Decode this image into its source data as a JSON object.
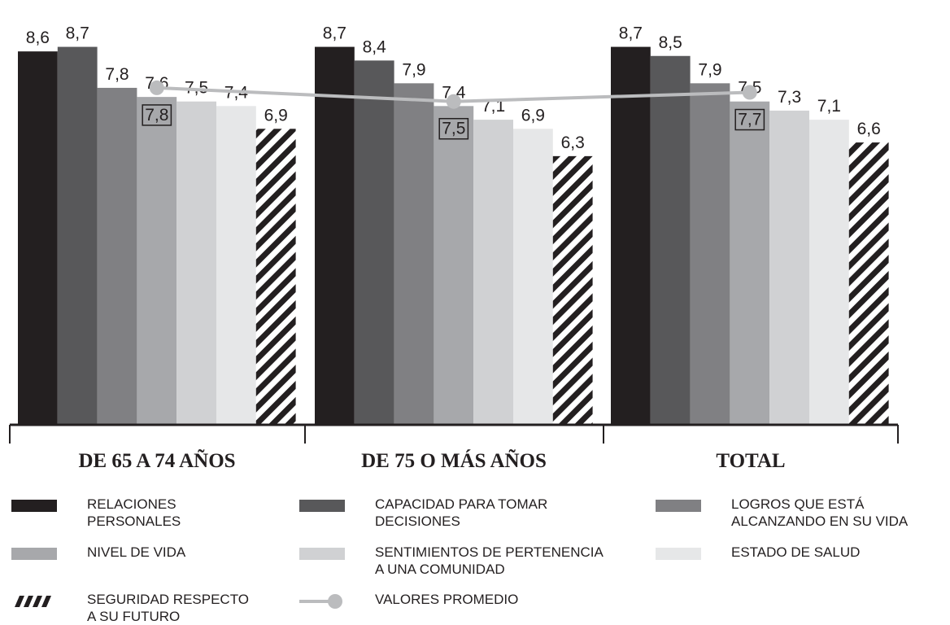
{
  "chart_data": {
    "type": "bar",
    "categories": [
      "DE 65 A 74 AÑOS",
      "DE 75 O MÁS AÑOS",
      "TOTAL"
    ],
    "series": [
      {
        "name": "RELACIONES\nPERSONALES",
        "color": "#231f20",
        "values": [
          8.6,
          8.7,
          8.7
        ],
        "value_labels": [
          "8,6",
          "8,7",
          "8,7"
        ]
      },
      {
        "name": "CAPACIDAD PARA TOMAR\nDECISIONES",
        "color": "#58585a",
        "values": [
          8.7,
          8.4,
          8.5
        ],
        "value_labels": [
          "8,7",
          "8,4",
          "8,5"
        ]
      },
      {
        "name": "LOGROS QUE ESTÁ\nALCANZANDO EN SU VIDA",
        "color": "#808083",
        "values": [
          7.8,
          7.9,
          7.9
        ],
        "value_labels": [
          "7,8",
          "7,9",
          "7,9"
        ]
      },
      {
        "name": "NIVEL DE VIDA",
        "color": "#a7a8ab",
        "values": [
          7.6,
          7.4,
          7.5
        ],
        "value_labels": [
          "7,6",
          "7,4",
          "7,5"
        ]
      },
      {
        "name": "SENTIMIENTOS DE PERTENENCIA\nA UNA COMUNIDAD",
        "color": "#d0d1d3",
        "values": [
          7.5,
          7.1,
          7.3
        ],
        "value_labels": [
          "7,5",
          "7,1",
          "7,3"
        ]
      },
      {
        "name": "ESTADO DE SALUD",
        "color": "#e6e7e8",
        "values": [
          7.4,
          6.9,
          7.1
        ],
        "value_labels": [
          "7,4",
          "6,9",
          "7,1"
        ]
      },
      {
        "name": "SEGURIDAD RESPECTO\nA SU FUTURO",
        "color": "#231f20",
        "pattern": "diagonal-stripes",
        "values": [
          6.9,
          6.3,
          6.6
        ],
        "value_labels": [
          "6,9",
          "6,3",
          "6,6"
        ]
      },
      {
        "name": "VALORES PROMEDIO",
        "type": "line",
        "color": "#bbbcbe",
        "values": [
          7.8,
          7.5,
          7.7
        ],
        "value_labels": [
          "7,8",
          "7,5",
          "7,7"
        ]
      }
    ],
    "ylim": [
      0.4,
      9.3
    ]
  }
}
